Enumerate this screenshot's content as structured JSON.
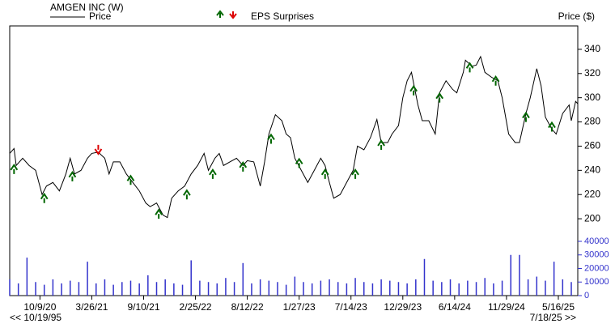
{
  "chart_data": {
    "type": "line",
    "title": "AMGEN INC (W)",
    "legend_label": "EPS Surprises",
    "y_axis_label": "Price ($)",
    "range_start": "<< 10/19/95",
    "range_end": "7/18/25 >>",
    "xlim": [
      0,
      263
    ],
    "xticks": [
      {
        "value": 14,
        "label": "10/9/20"
      },
      {
        "value": 38,
        "label": "3/26/21"
      },
      {
        "value": 62,
        "label": "9/10/21"
      },
      {
        "value": 86,
        "label": "2/25/22"
      },
      {
        "value": 110,
        "label": "8/12/22"
      },
      {
        "value": 134,
        "label": "1/27/23"
      },
      {
        "value": 158,
        "label": "7/14/23"
      },
      {
        "value": 182,
        "label": "12/29/23"
      },
      {
        "value": 206,
        "label": "6/14/24"
      },
      {
        "value": 230,
        "label": "11/29/24"
      },
      {
        "value": 254,
        "label": "5/16/25"
      }
    ],
    "ylim": [
      180,
      360
    ],
    "yticks": [
      200,
      220,
      240,
      260,
      280,
      300,
      320,
      340
    ],
    "series": [
      {
        "name": "Price",
        "color": "#000000",
        "x": [
          0,
          2,
          3,
          6,
          9,
          12,
          15,
          17,
          20,
          23,
          26,
          28,
          30,
          33,
          36,
          38,
          41,
          44,
          46,
          48,
          51,
          54,
          57,
          60,
          63,
          65,
          68,
          71,
          73,
          75,
          78,
          81,
          84,
          87,
          90,
          92,
          95,
          97,
          99,
          102,
          105,
          108,
          110,
          113,
          116,
          118,
          120,
          123,
          126,
          128,
          130,
          132,
          135,
          138,
          141,
          144,
          146,
          148,
          150,
          153,
          156,
          159,
          161,
          164,
          167,
          170,
          172,
          175,
          177,
          180,
          182,
          184,
          186,
          189,
          191,
          194,
          197,
          199,
          202,
          205,
          207,
          210,
          211,
          214,
          216,
          218,
          220,
          223,
          226,
          228,
          231,
          234,
          236,
          239,
          241,
          244,
          246,
          248,
          251,
          253,
          256,
          259,
          260,
          262,
          263
        ],
        "values": [
          254,
          258,
          244,
          250,
          244,
          240,
          220,
          227,
          230,
          223,
          237,
          250,
          237,
          240,
          250,
          254,
          255,
          250,
          237,
          247,
          247,
          237,
          230,
          223,
          213,
          210,
          213,
          203,
          201,
          217,
          223,
          227,
          237,
          244,
          254,
          240,
          250,
          254,
          244,
          247,
          250,
          244,
          248,
          247,
          227,
          247,
          270,
          286,
          281,
          270,
          267,
          250,
          240,
          230,
          240,
          250,
          244,
          230,
          217,
          220,
          230,
          240,
          260,
          257,
          267,
          282,
          263,
          263,
          270,
          277,
          300,
          314,
          321,
          294,
          281,
          281,
          270,
          304,
          314,
          307,
          304,
          321,
          331,
          326,
          327,
          334,
          321,
          317,
          314,
          300,
          270,
          263,
          263,
          287,
          300,
          324,
          310,
          284,
          274,
          270,
          287,
          294,
          281,
          297,
          295
        ]
      }
    ],
    "volume": {
      "color": "#3333cc",
      "ylim": [
        0,
        40000
      ],
      "yticks": [
        0,
        10000,
        20000,
        30000,
        40000
      ],
      "x": [
        0,
        4,
        8,
        12,
        16,
        20,
        24,
        28,
        32,
        36,
        40,
        44,
        48,
        52,
        56,
        60,
        64,
        68,
        72,
        76,
        80,
        84,
        88,
        92,
        96,
        100,
        104,
        108,
        112,
        116,
        120,
        124,
        128,
        132,
        136,
        140,
        144,
        148,
        152,
        156,
        160,
        164,
        168,
        172,
        176,
        180,
        184,
        188,
        192,
        196,
        200,
        204,
        208,
        212,
        216,
        220,
        224,
        228,
        232,
        236,
        240,
        244,
        248,
        252,
        256,
        260
      ],
      "values": [
        12000,
        9000,
        28000,
        10000,
        8000,
        12000,
        9000,
        11000,
        10000,
        25000,
        9000,
        12000,
        8000,
        10000,
        11000,
        9000,
        15000,
        10000,
        12000,
        9000,
        8000,
        26000,
        11000,
        10000,
        9000,
        13000,
        10000,
        24000,
        9000,
        12000,
        11000,
        10000,
        8000,
        14000,
        10000,
        9000,
        11000,
        12000,
        10000,
        9000,
        13000,
        10000,
        9000,
        12000,
        11000,
        10000,
        9000,
        12000,
        27000,
        11000,
        10000,
        12000,
        9000,
        11000,
        10000,
        13000,
        9000,
        11000,
        30000,
        30000,
        12000,
        14000,
        11000,
        25000,
        12000,
        10000
      ]
    },
    "eps": {
      "colors": {
        "up": "#006600",
        "down": "#dd0000"
      },
      "x": [
        2,
        16,
        29,
        41,
        56,
        69,
        82,
        94,
        108,
        121,
        134,
        146,
        160,
        172,
        187,
        199,
        213,
        225,
        239,
        251
      ],
      "values": [
        243,
        219,
        237,
        255,
        234,
        206,
        222,
        239,
        245,
        268,
        248,
        239,
        239,
        263,
        308,
        302,
        327,
        316,
        286,
        278
      ],
      "direction": [
        "up",
        "up",
        "up",
        "down",
        "up",
        "up",
        "up",
        "up",
        "up",
        "up",
        "up",
        "up",
        "up",
        "up",
        "up",
        "up",
        "up",
        "up",
        "up",
        "up"
      ]
    }
  }
}
